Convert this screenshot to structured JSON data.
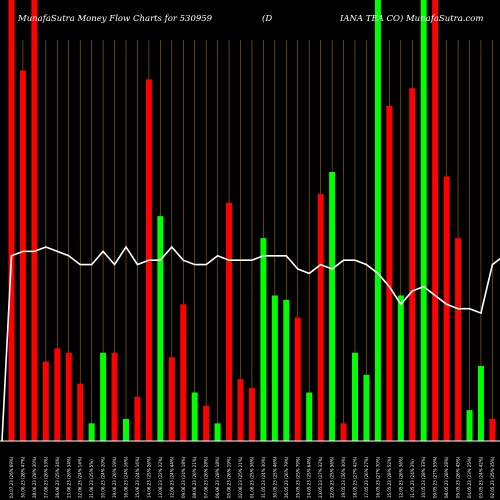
{
  "title": {
    "left": "MunafaSutra  Money Flow  Charts for 530959",
    "middle": "(D",
    "right": "IANA TEA CO) MunafaSutra.com"
  },
  "colors": {
    "background": "#000000",
    "up": "#00ff00",
    "down": "#ff0000",
    "line": "#ffffff",
    "grid": "#b8860b",
    "axis": "#ffffff"
  },
  "chart_data": {
    "type": "bar",
    "grid": "vertical",
    "ylim": [
      0,
      100
    ],
    "categories": [
      "03.07.23 (26% 69%)",
      "30.06.23 (28% 47%)",
      "28.06.23 (28% 30%)",
      "27.06.23 (26% 53%)",
      "26.06.23 (25% 34%)",
      "23.06.23 (26% 34%)",
      "22.06.23 (24% 14%)",
      "21.06.23 (25% 5%)",
      "20.06.23 (24% 20%)",
      "19.06.23 (26% 19%)",
      "16.06.23 (24% 16%)",
      "15.06.23 (24% 16%)",
      "14.06.23 (25% 26%)",
      "13.06.23 (22% 22%)",
      "12.06.23 (24% 44%)",
      "09.06.23 (24% 18%)",
      "08.06.23 (26% 21%)",
      "07.06.23 (26% 28%)",
      "06.06.23 (28% 18%)",
      "05.06.23 (26% 19%)",
      "02.06.23 (25% 21%)",
      "01.06.23 (25% 36%)",
      "31.05.23 (24% 30%)",
      "30.05.23 (25% 46%)",
      "26.05.23 (26% 79%)",
      "25.05.23 (25% 79%)",
      "24.05.23 (25% 64%)",
      "23.05.23 (27% 32%)",
      "22.05.23 (25% 56%)",
      "19.05.23 (26% 30%)",
      "18.05.23 (27% 42%)",
      "17.05.23 (26% 27%)",
      "16.05.23 (27% 70%)",
      "15.05.23 (28% 52%)",
      "12.05.23 (26% 36%)",
      "11.05.23 (24% 3%)",
      "10.05.23 (28% 33%)",
      "09.05.23 (27% 55%)",
      "08.05.23 (28% 28%)",
      "05.05.23 (26% 45%)",
      "04.05.23 (23% 25%)",
      "03.05.23 (24% 42%)",
      "02.05.23 (25% 35%)",
      "28.04.23 (27% 31%)",
      "27.04.23 (25% 28%)"
    ],
    "series": [
      {
        "kind": "bar",
        "values": [
          100,
          84,
          100,
          18,
          21,
          20,
          13,
          4,
          20,
          20,
          5,
          10,
          82,
          51,
          19,
          31,
          11,
          8,
          4,
          54,
          14,
          12,
          46,
          33,
          32,
          28,
          11,
          56,
          61,
          4,
          20,
          15,
          100,
          76,
          33,
          80,
          100,
          100,
          60,
          46,
          7,
          17,
          5,
          9,
          1
        ],
        "directions": [
          "down",
          "down",
          "down",
          "down",
          "down",
          "down",
          "down",
          "up",
          "up",
          "down",
          "up",
          "down",
          "down",
          "up",
          "down",
          "down",
          "up",
          "down",
          "up",
          "down",
          "down",
          "down",
          "up",
          "up",
          "up",
          "down",
          "up",
          "down",
          "up",
          "down",
          "up",
          "up",
          "up",
          "down",
          "up",
          "down",
          "up",
          "down",
          "down",
          "down",
          "up",
          "up",
          "down",
          "down",
          "down"
        ]
      },
      {
        "kind": "line",
        "values": [
          42,
          43,
          43,
          44,
          43,
          42,
          40,
          40,
          43,
          40,
          44,
          40,
          41,
          41,
          44,
          41,
          40,
          40,
          42,
          41,
          41,
          41,
          42,
          42,
          42,
          39,
          38,
          40,
          39,
          41,
          41,
          40,
          38,
          35,
          31,
          34,
          35,
          33,
          31,
          30,
          30,
          29,
          40,
          42,
          43
        ]
      }
    ]
  }
}
